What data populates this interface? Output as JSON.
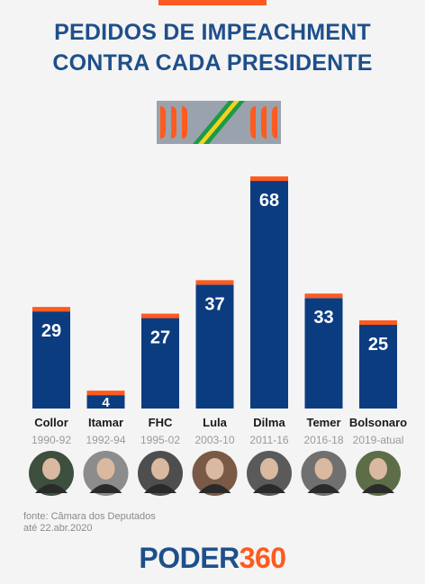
{
  "title_line1": "PEDIDOS DE IMPEACHMENT",
  "title_line2": "CONTRA CADA PRESIDENTE",
  "colors": {
    "bar": "#0c3c80",
    "cap": "#ff5a1f",
    "title": "#1e4f8a"
  },
  "chart_data": {
    "type": "bar",
    "categories": [
      "Collor",
      "Itamar",
      "FHC",
      "Lula",
      "Dilma",
      "Temer",
      "Bolsonaro"
    ],
    "periods": [
      "1990-92",
      "1992-94",
      "1995-02",
      "2003-10",
      "2011-16",
      "2016-18",
      "2019-atual"
    ],
    "values": [
      29,
      4,
      27,
      37,
      68,
      33,
      25
    ],
    "data_labels": true
  },
  "source_line1": "fonte: Câmara dos Deputados",
  "source_line2": "até 22.abr.2020",
  "logo_part1": "PODER",
  "logo_part2": "360"
}
